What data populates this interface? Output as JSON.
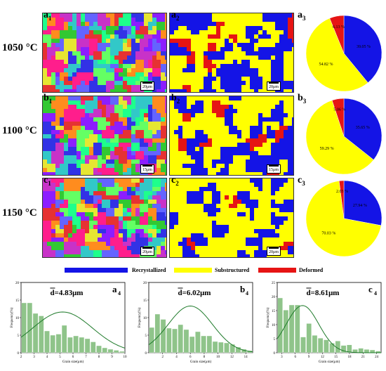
{
  "rows": [
    {
      "temp": "1050 °C",
      "ebsd_label": "a",
      "ebsd_sub": "1",
      "phase_label": "a",
      "phase_sub": "2",
      "pie_label": "a",
      "pie_sub": "3",
      "scale": "20μm",
      "scale2": "20μm",
      "pie": {
        "recrystallized": 39.05,
        "substructured": 54.82,
        "deformed": 6.13,
        "labels": [
          "39.05 %",
          "54.82 %",
          "6.13 %"
        ]
      }
    },
    {
      "temp": "1100 °C",
      "ebsd_label": "b",
      "ebsd_sub": "1",
      "phase_label": "b",
      "phase_sub": "2",
      "pie_label": "b",
      "pie_sub": "3",
      "scale": "15μm",
      "scale2": "15μm",
      "pie": {
        "recrystallized": 35.65,
        "substructured": 59.29,
        "deformed": 5.06,
        "labels": [
          "35.65 %",
          "59.29 %",
          "5.06 %"
        ]
      }
    },
    {
      "temp": "1150 °C",
      "ebsd_label": "c",
      "ebsd_sub": "1",
      "phase_label": "c",
      "phase_sub": "2",
      "pie_label": "c",
      "pie_sub": "3",
      "scale": "20μm",
      "scale2": "20μm",
      "pie": {
        "recrystallized": 27.94,
        "substructured": 70.03,
        "deformed": 2.03,
        "labels": [
          "27.94 %",
          "70.03 %",
          "2.03 %"
        ]
      }
    }
  ],
  "legend": {
    "recrystallized": "Recrystallized",
    "substructured": "Substructured",
    "deformed": "Deformed"
  },
  "colors": {
    "recrystallized": "#1414e6",
    "substructured": "#ffff00",
    "deformed": "#e61414",
    "hist": "#8fc48a",
    "fit": "#1e7a2a"
  },
  "chart_data": [
    {
      "type": "bar",
      "label": "a",
      "sub": "4",
      "annotation": "d=4.83μm",
      "xlabel": "Grain size(μm)",
      "ylabel": "Frequency(%)",
      "xlim": [
        2,
        10
      ],
      "ylim": [
        0,
        20
      ],
      "xticks": [
        2,
        3,
        4,
        5,
        6,
        7,
        8,
        9,
        10
      ],
      "yticks": [
        0,
        5,
        10,
        15,
        20
      ],
      "values": [
        14.2,
        14.2,
        11.2,
        10.5,
        6.2,
        5.0,
        5.3,
        7.8,
        4.4,
        4.8,
        4.4,
        4.0,
        3.1,
        2.0,
        1.4,
        1.0,
        0.7,
        0.4
      ],
      "fit": {
        "mean": 5.2,
        "peak": 11.6,
        "sigma": 2.3
      }
    },
    {
      "type": "bar",
      "label": "b",
      "sub": "4",
      "annotation": "d=6.02μm",
      "xlabel": "Grain size(μm)",
      "ylabel": "Frequency(%)",
      "xlim": [
        0,
        15
      ],
      "ylim": [
        0,
        20
      ],
      "xticks": [
        2,
        4,
        6,
        8,
        10,
        12,
        14
      ],
      "yticks": [
        0,
        5,
        10,
        15,
        20
      ],
      "values": [
        7.2,
        11.0,
        9.5,
        7.0,
        6.8,
        8.0,
        6.6,
        4.6,
        6.0,
        4.8,
        4.8,
        3.2,
        3.0,
        2.8,
        2.4,
        1.6,
        1.0,
        0.6
      ],
      "fit": {
        "mean": 6.0,
        "peak": 13.3,
        "sigma": 3.2
      }
    },
    {
      "type": "bar",
      "label": "c",
      "sub": "4",
      "annotation": "d=8.61μm",
      "xlabel": "Grain size(μm)",
      "ylabel": "Frequency(%)",
      "xlim": [
        2,
        25
      ],
      "ylim": [
        0,
        25
      ],
      "xticks": [
        3,
        6,
        9,
        12,
        15,
        18,
        21,
        24
      ],
      "yticks": [
        0,
        5,
        10,
        15,
        20,
        25
      ],
      "values": [
        19.5,
        15.2,
        17.0,
        17.0,
        5.6,
        10.4,
        6.2,
        5.2,
        4.6,
        3.4,
        4.2,
        2.6,
        2.8,
        1.2,
        1.6,
        1.2,
        1.0,
        0.6
      ],
      "fit": {
        "mean": 7.6,
        "peak": 16.8,
        "sigma": 3.6
      }
    }
  ]
}
